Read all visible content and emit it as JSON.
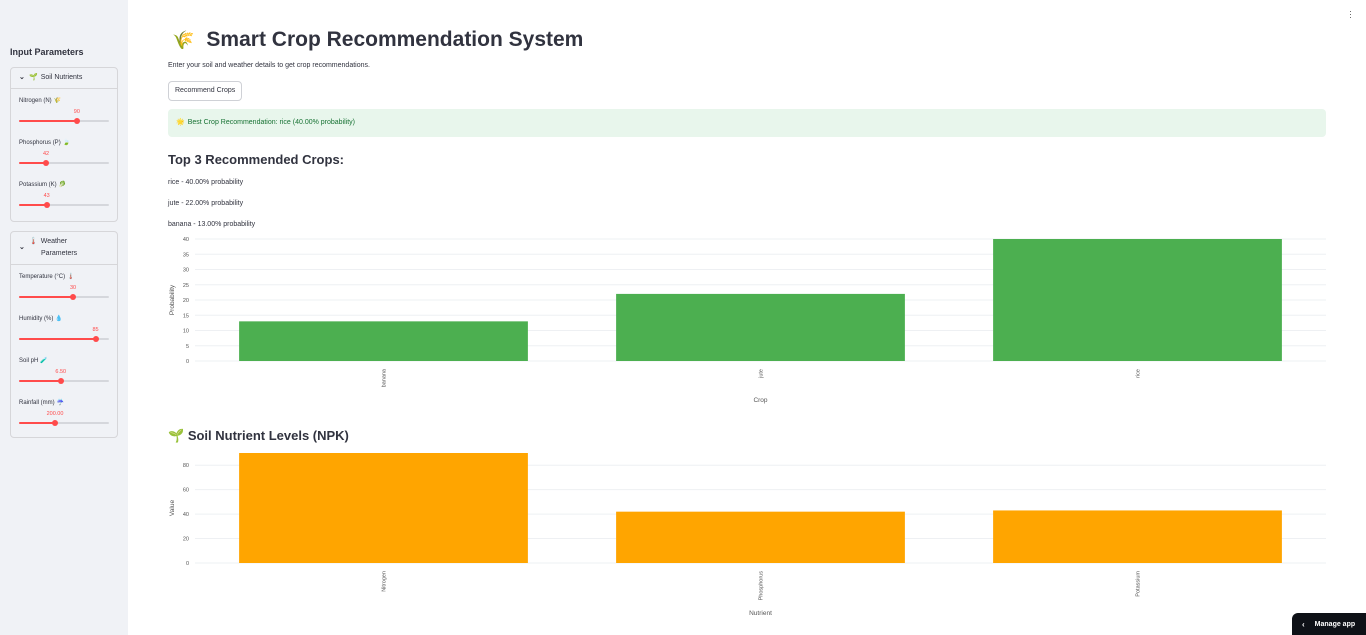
{
  "sidebar": {
    "title": "Input Parameters",
    "soil_expander": {
      "icon": "🌱",
      "label": "Soil Nutrients"
    },
    "weather_expander": {
      "icon": "🌡️",
      "label_line1": "Weather",
      "label_line2": "Parameters"
    },
    "soil_sliders": [
      {
        "label": "Nitrogen (N)",
        "emoji": "🌾",
        "value": "90",
        "fraction": 0.643
      },
      {
        "label": "Phosphorus (P)",
        "emoji": "🍃",
        "value": "42",
        "fraction": 0.3
      },
      {
        "label": "Potassium (K)",
        "emoji": "🥬",
        "value": "43",
        "fraction": 0.307
      }
    ],
    "weather_sliders": [
      {
        "label": "Temperature (°C)",
        "emoji": "🌡️",
        "value": "30",
        "fraction": 0.6
      },
      {
        "label": "Humidity (%)",
        "emoji": "💧",
        "value": "85",
        "fraction": 0.85
      },
      {
        "label": "Soil pH",
        "emoji": "🧪",
        "value": "6.50",
        "fraction": 0.464
      },
      {
        "label": "Rainfall (mm)",
        "emoji": "☔",
        "value": "200.00",
        "fraction": 0.4
      }
    ]
  },
  "header": {
    "icon": "🌾",
    "title": "Smart Crop Recommendation System",
    "subtitle": "Enter your soil and weather details to get crop recommendations."
  },
  "recommend_button": "Recommend Crops",
  "success": {
    "icon": "🌟",
    "text": "Best Crop Recommendation: rice (40.00% probability)"
  },
  "top3": {
    "heading": "Top 3 Recommended Crops:",
    "lines": [
      "rice - 40.00% probability",
      "jute - 22.00% probability",
      "banana - 13.00% probability"
    ]
  },
  "npk_heading": {
    "icon": "🌱",
    "text": "Soil Nutrient Levels (NPK)"
  },
  "manage_app": "Manage app",
  "colors": {
    "accent": "#ff4b4b",
    "crop_bar": "#4caf50",
    "npk_bar": "#ffa500"
  },
  "chart_data": [
    {
      "type": "bar",
      "categories": [
        "banana",
        "jute",
        "rice"
      ],
      "values": [
        13,
        22,
        40
      ],
      "xlabel": "Crop",
      "ylabel": "Probability",
      "ylim": [
        0,
        40
      ],
      "yticks": [
        0,
        5,
        10,
        15,
        20,
        25,
        30,
        35,
        40
      ],
      "grid": true
    },
    {
      "type": "bar",
      "categories": [
        "Nitrogen",
        "Phosphorus",
        "Potassium"
      ],
      "values": [
        90,
        42,
        43
      ],
      "xlabel": "Nutrient",
      "ylabel": "Value",
      "ylim": [
        0,
        90
      ],
      "yticks": [
        0,
        20,
        40,
        60,
        80
      ],
      "grid": true
    }
  ]
}
